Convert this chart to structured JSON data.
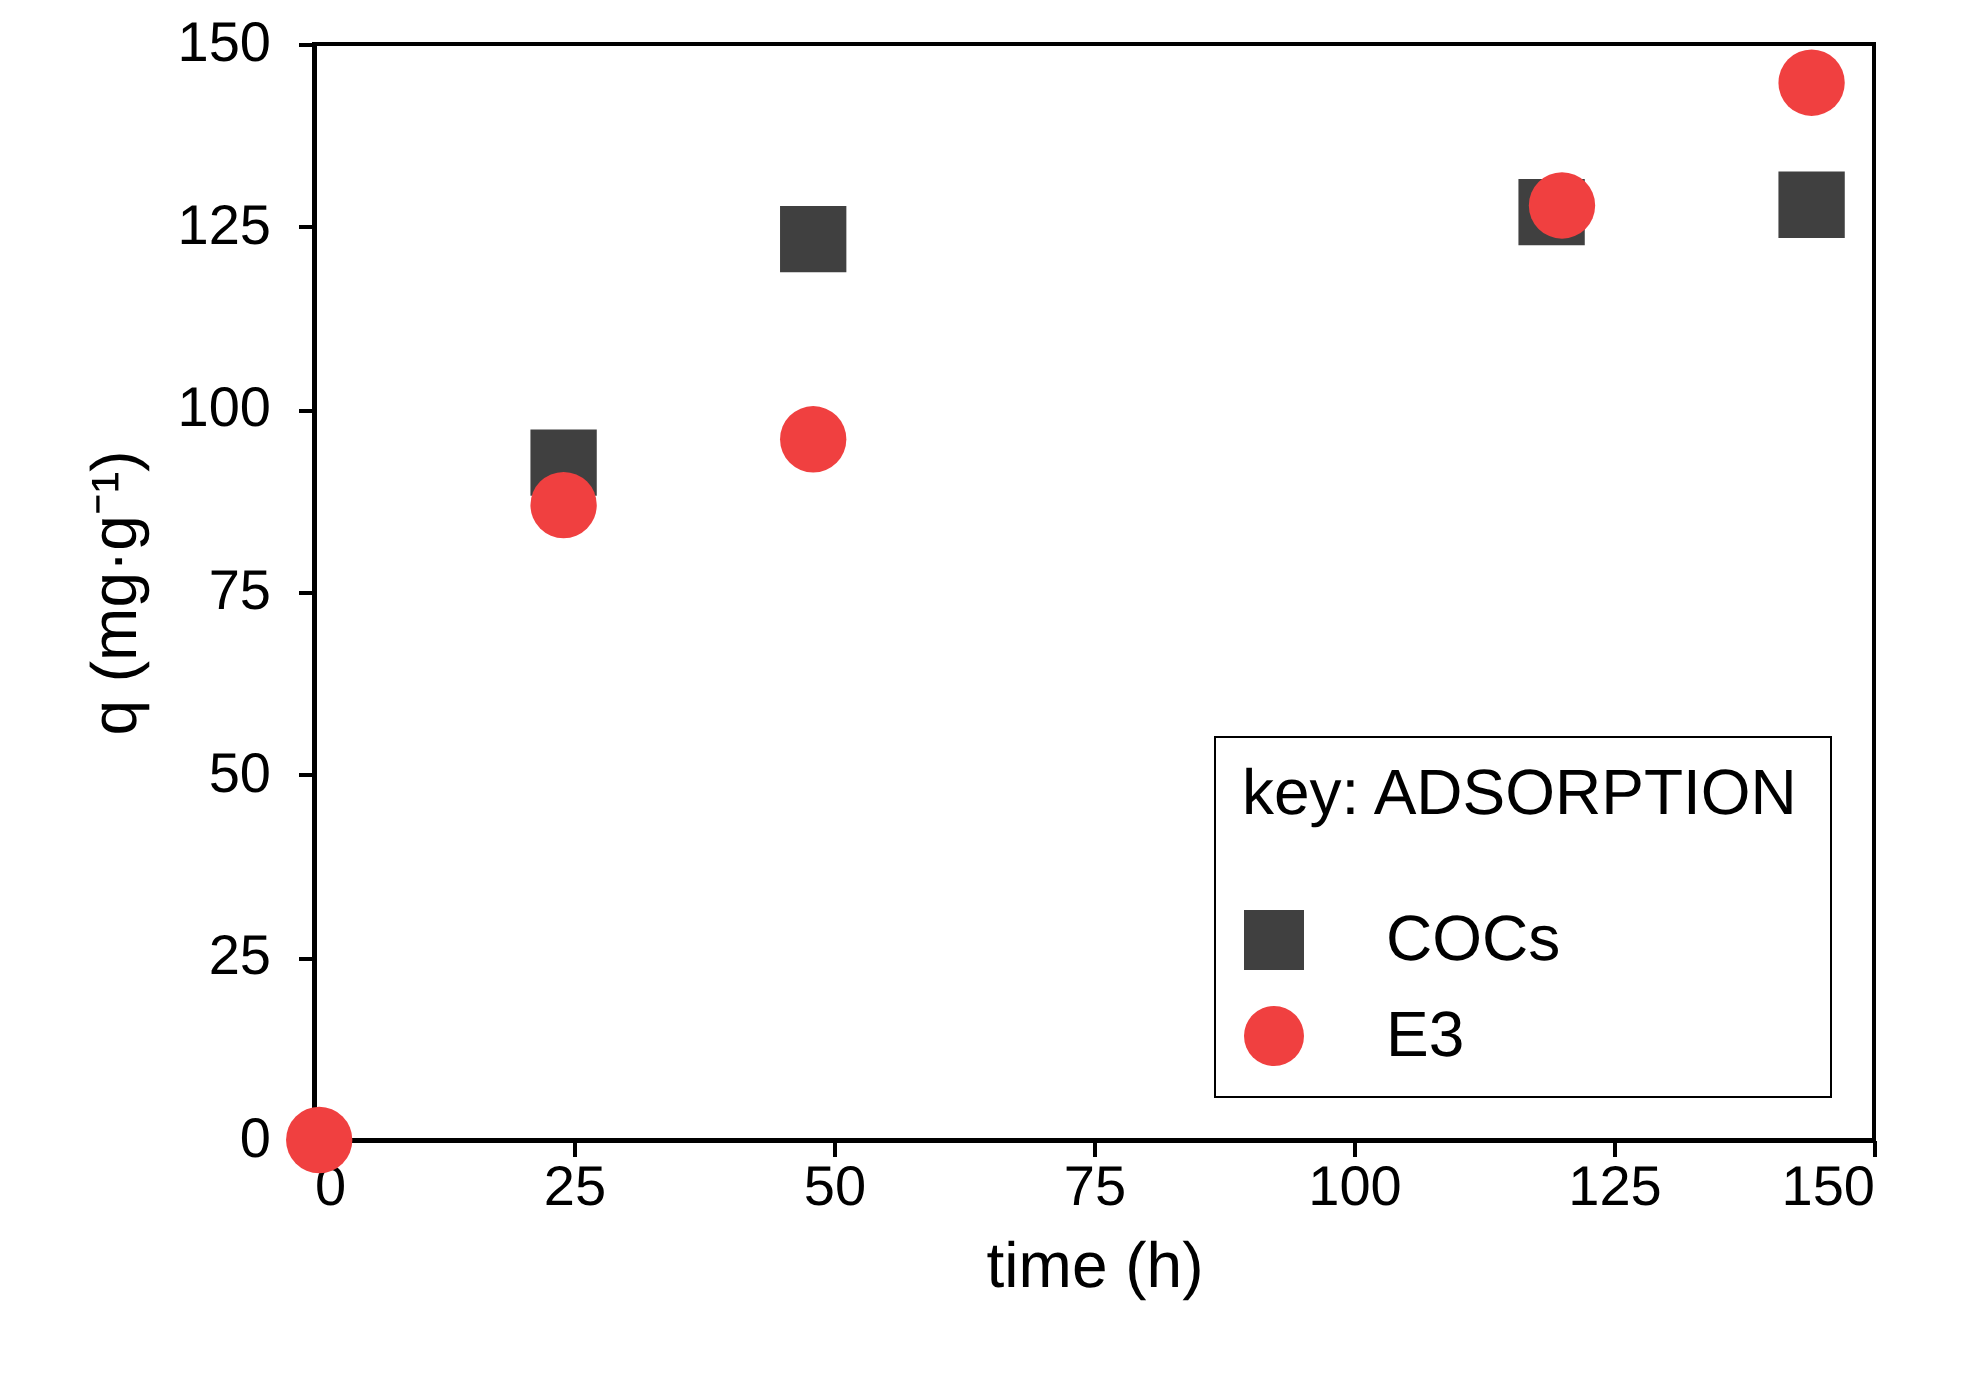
{
  "chart_data": {
    "type": "scatter",
    "xlabel": "time (h)",
    "ylabel": "q (mg·g⁻¹)",
    "legend_title": "key: ADSORPTION",
    "legend": "bottom right",
    "grid": false,
    "xlim": [
      0,
      150
    ],
    "xticks": [
      0,
      25,
      50,
      75,
      100,
      125,
      150
    ],
    "ylim": [
      0,
      150
    ],
    "yticks": [
      0,
      25,
      50,
      75,
      100,
      125,
      150
    ],
    "series": [
      {
        "name": "COCs",
        "color": "#404040",
        "marker": "square",
        "x": [
          24,
          48,
          119,
          144
        ],
        "values": [
          92.7,
          123.3,
          127,
          128
        ]
      },
      {
        "name": "E3",
        "color": "#f04040",
        "marker": "circle",
        "x": [
          0.5,
          24,
          48,
          120,
          144
        ],
        "values": [
          0,
          86.9,
          95.9,
          127.9,
          144.7
        ]
      }
    ]
  }
}
